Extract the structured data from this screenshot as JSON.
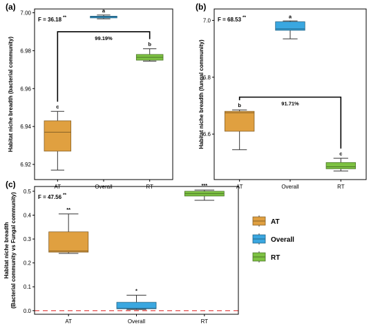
{
  "chart_data": [
    {
      "type": "box",
      "panel": "(a)",
      "ylabel": "Habitat niche breadth (bacterial community)",
      "categories": [
        "AT",
        "Overall",
        "RT"
      ],
      "ylim": [
        6.912,
        7.002
      ],
      "yticks": [
        6.92,
        6.94,
        6.96,
        6.98,
        7.0
      ],
      "ytick_labels": [
        "6.92",
        "6.94",
        "6.96",
        "6.98",
        "7.00"
      ],
      "stat_text": "F = 36.18",
      "stat_sig": "**",
      "boxes": [
        {
          "category": "AT",
          "min": 6.917,
          "q1": 6.927,
          "median": 6.937,
          "q3": 6.943,
          "max": 6.948,
          "label": "c",
          "color": "#E0A040"
        },
        {
          "category": "Overall",
          "min": 6.9968,
          "q1": 6.9973,
          "median": 6.9978,
          "q3": 6.9982,
          "max": 6.9988,
          "label": "a",
          "color": "#3AA7E0"
        },
        {
          "category": "RT",
          "min": 6.9745,
          "q1": 6.975,
          "median": 6.9765,
          "q3": 6.978,
          "max": 6.981,
          "label": "b",
          "color": "#7DC242"
        }
      ],
      "bracket": {
        "from": "AT",
        "to": "RT",
        "y": 6.99,
        "label": "99.19%"
      }
    },
    {
      "type": "box",
      "panel": "(b)",
      "ylabel": "Habitat niche breadth (fungal community)",
      "categories": [
        "AT",
        "Overall",
        "RT"
      ],
      "ylim": [
        6.44,
        7.04
      ],
      "yticks": [
        6.6,
        6.8,
        7.0
      ],
      "ytick_labels": [
        "6.6",
        "6.8",
        "7.0"
      ],
      "stat_text": "F = 68.53",
      "stat_sig": "**",
      "boxes": [
        {
          "category": "AT",
          "min": 6.545,
          "q1": 6.61,
          "median": 6.675,
          "q3": 6.68,
          "max": 6.685,
          "label": "b",
          "color": "#E0A040"
        },
        {
          "category": "Overall",
          "min": 6.935,
          "q1": 6.965,
          "median": 6.97,
          "q3": 6.995,
          "max": 6.998,
          "label": "a",
          "color": "#3AA7E0"
        },
        {
          "category": "RT",
          "min": 6.47,
          "q1": 6.478,
          "median": 6.485,
          "q3": 6.5,
          "max": 6.515,
          "label": "c",
          "color": "#7DC242"
        }
      ],
      "bracket": {
        "from": "AT",
        "to": "RT",
        "y": 6.73,
        "label": "91.71%"
      }
    },
    {
      "type": "box",
      "panel": "(c)",
      "ylabel": "Habitat niche breadth",
      "ylabel2": "(Bacterial community vs Fungal community)",
      "categories": [
        "AT",
        "Overall",
        "RT"
      ],
      "ylim": [
        -0.015,
        0.52
      ],
      "yticks": [
        0.0,
        0.1,
        0.2,
        0.3,
        0.4,
        0.5
      ],
      "ytick_labels": [
        "0.0",
        "0.1",
        "0.2",
        "0.3",
        "0.4",
        "0.5"
      ],
      "stat_text": "F = 47.56",
      "stat_sig": "**",
      "reference_line": {
        "y": 0.0,
        "color": "#E03030"
      },
      "boxes": [
        {
          "category": "AT",
          "min": 0.24,
          "q1": 0.245,
          "median": 0.25,
          "q3": 0.33,
          "max": 0.405,
          "label": "**",
          "color": "#E0A040"
        },
        {
          "category": "Overall",
          "min": 0.005,
          "q1": 0.008,
          "median": 0.01,
          "q3": 0.035,
          "max": 0.065,
          "label": "*",
          "color": "#3AA7E0"
        },
        {
          "category": "RT",
          "min": 0.462,
          "q1": 0.48,
          "median": 0.49,
          "q3": 0.5,
          "max": 0.505,
          "label": "***",
          "color": "#7DC242"
        }
      ]
    }
  ],
  "legend": {
    "placement": "right",
    "items": [
      {
        "label": "AT",
        "color": "#E0A040"
      },
      {
        "label": "Overall",
        "color": "#3AA7E0"
      },
      {
        "label": "RT",
        "color": "#7DC242"
      }
    ]
  }
}
